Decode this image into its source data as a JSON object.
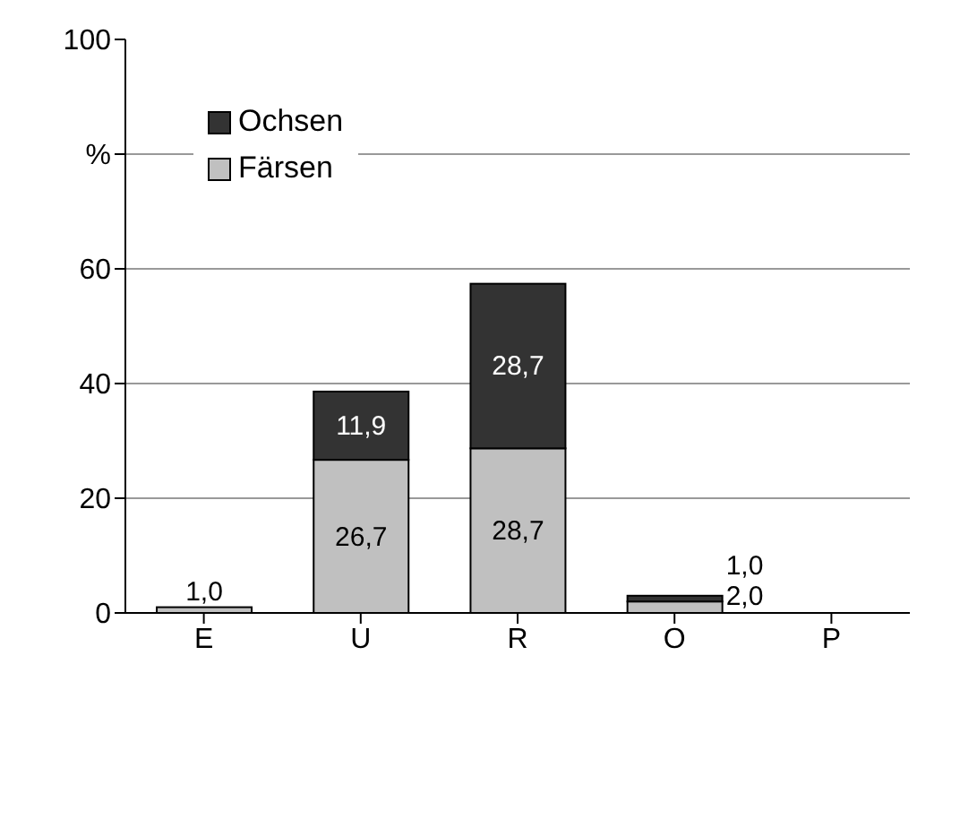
{
  "chart_data": {
    "type": "bar",
    "stacked": true,
    "categories": [
      "E",
      "U",
      "R",
      "O",
      "P"
    ],
    "series": [
      {
        "name": "Färsen",
        "color": "#c0c0c0",
        "values": [
          1.0,
          26.7,
          28.7,
          2.0,
          0
        ],
        "value_labels": [
          "1,0",
          "26,7",
          "28,7",
          "2,0",
          null
        ]
      },
      {
        "name": "Ochsen",
        "color": "#333333",
        "values": [
          0,
          11.9,
          28.7,
          1.0,
          0
        ],
        "value_labels": [
          null,
          "11,9",
          "28,7",
          "1,0",
          null
        ]
      }
    ],
    "ylim": [
      0,
      100
    ],
    "yticks": [
      0,
      20,
      40,
      60,
      {
        "value": 80,
        "label": "%"
      },
      100
    ],
    "grid": "y",
    "legend": "top left"
  }
}
